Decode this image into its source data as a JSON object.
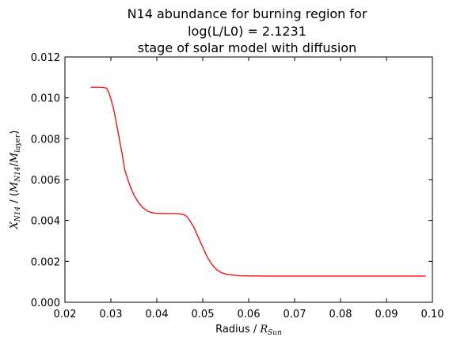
{
  "chart_data": {
    "type": "line",
    "title_lines": [
      "N14 abundance for burning region for",
      "log(L/L0) = 2.1231",
      "stage of solar model with diffusion"
    ],
    "xlabel": {
      "prefix": "Radius / ",
      "symbol": "R",
      "subscript": "Sun"
    },
    "ylabel": {
      "symbol1": "X",
      "sub1": "N14",
      "mid": " / (",
      "symbol2": "M",
      "sub2": "N14",
      "slash": "/",
      "symbol3": "M",
      "sub3": "layer",
      "end": ")"
    },
    "xlim": [
      0.02,
      0.1
    ],
    "ylim": [
      0.0,
      0.012
    ],
    "xticks": [
      "0.02",
      "0.03",
      "0.04",
      "0.05",
      "0.06",
      "0.07",
      "0.08",
      "0.09",
      "0.10"
    ],
    "yticks": [
      "0.000",
      "0.002",
      "0.004",
      "0.006",
      "0.008",
      "0.010",
      "0.012"
    ],
    "grid": false,
    "series": [
      {
        "color": "#ff0000",
        "x": [
          0.0256,
          0.027,
          0.028,
          0.029,
          0.0295,
          0.03,
          0.0305,
          0.031,
          0.0315,
          0.032,
          0.0325,
          0.033,
          0.034,
          0.035,
          0.036,
          0.037,
          0.038,
          0.039,
          0.04,
          0.042,
          0.044,
          0.045,
          0.046,
          0.0465,
          0.047,
          0.048,
          0.049,
          0.05,
          0.051,
          0.052,
          0.053,
          0.054,
          0.055,
          0.056,
          0.057,
          0.058,
          0.06,
          0.065,
          0.07,
          0.08,
          0.09,
          0.0985
        ],
        "y": [
          0.01052,
          0.01052,
          0.01052,
          0.01048,
          0.0103,
          0.00995,
          0.00955,
          0.009,
          0.0084,
          0.0078,
          0.0072,
          0.0065,
          0.0058,
          0.00525,
          0.00488,
          0.00462,
          0.00445,
          0.00438,
          0.00435,
          0.00434,
          0.00434,
          0.00433,
          0.00428,
          0.0042,
          0.00405,
          0.0037,
          0.0032,
          0.0027,
          0.0022,
          0.00185,
          0.0016,
          0.00145,
          0.00138,
          0.00134,
          0.00132,
          0.0013,
          0.00129,
          0.00128,
          0.00128,
          0.00128,
          0.00128,
          0.00128
        ]
      }
    ]
  }
}
